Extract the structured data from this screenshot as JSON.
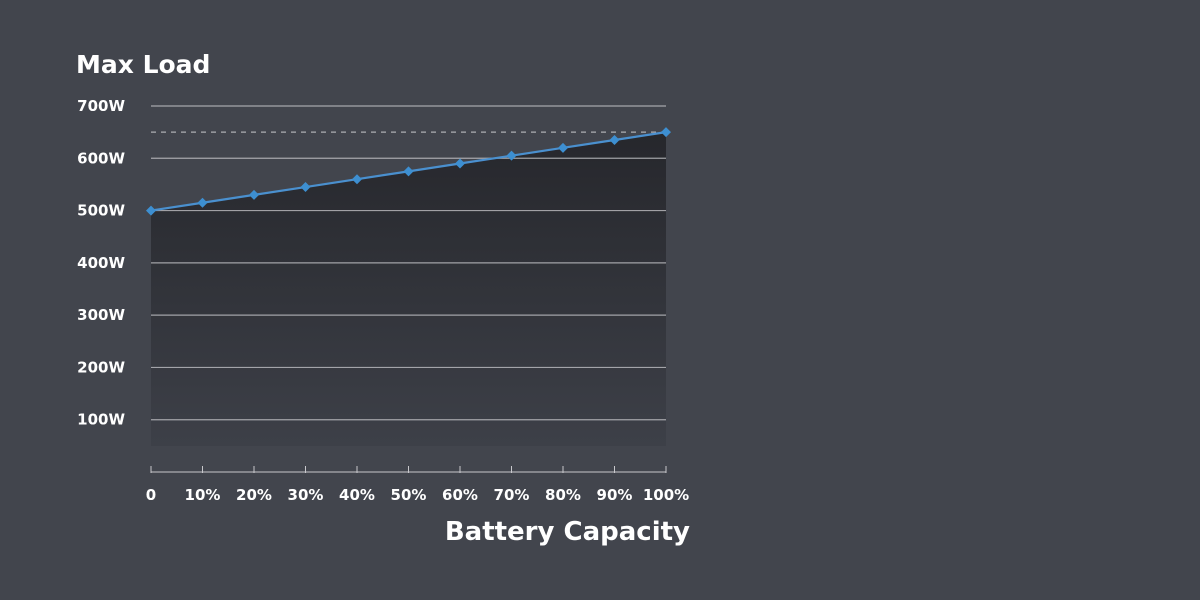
{
  "chart_data": {
    "type": "line",
    "ylabel": "Max Load",
    "xlabel": "Battery Capacity",
    "x": [
      0,
      10,
      20,
      30,
      40,
      50,
      60,
      70,
      80,
      90,
      100
    ],
    "x_tick_labels": [
      "0",
      "10%",
      "20%",
      "30%",
      "40%",
      "50%",
      "60%",
      "70%",
      "80%",
      "90%",
      "100%"
    ],
    "y_tick_values": [
      100,
      200,
      300,
      400,
      500,
      600,
      700
    ],
    "y_tick_labels": [
      "100W",
      "200W",
      "300W",
      "400W",
      "500W",
      "600W",
      "700W"
    ],
    "ylim": [
      0,
      700
    ],
    "xlim": [
      0,
      100
    ],
    "series": [
      {
        "values": [
          500,
          515,
          530,
          545,
          560,
          575,
          590,
          605,
          620,
          635,
          650
        ]
      }
    ],
    "reference_line": {
      "value": 650,
      "style": "dashed"
    },
    "grid": true,
    "area_fill": true,
    "colors": {
      "background": "#42454d",
      "line": "#4a90cf",
      "marker": "#3d8fd1",
      "grid": "#c8c8cc",
      "area_top": "#26272c",
      "area_bottom": "#3d4048",
      "text": "#ffffff"
    }
  }
}
